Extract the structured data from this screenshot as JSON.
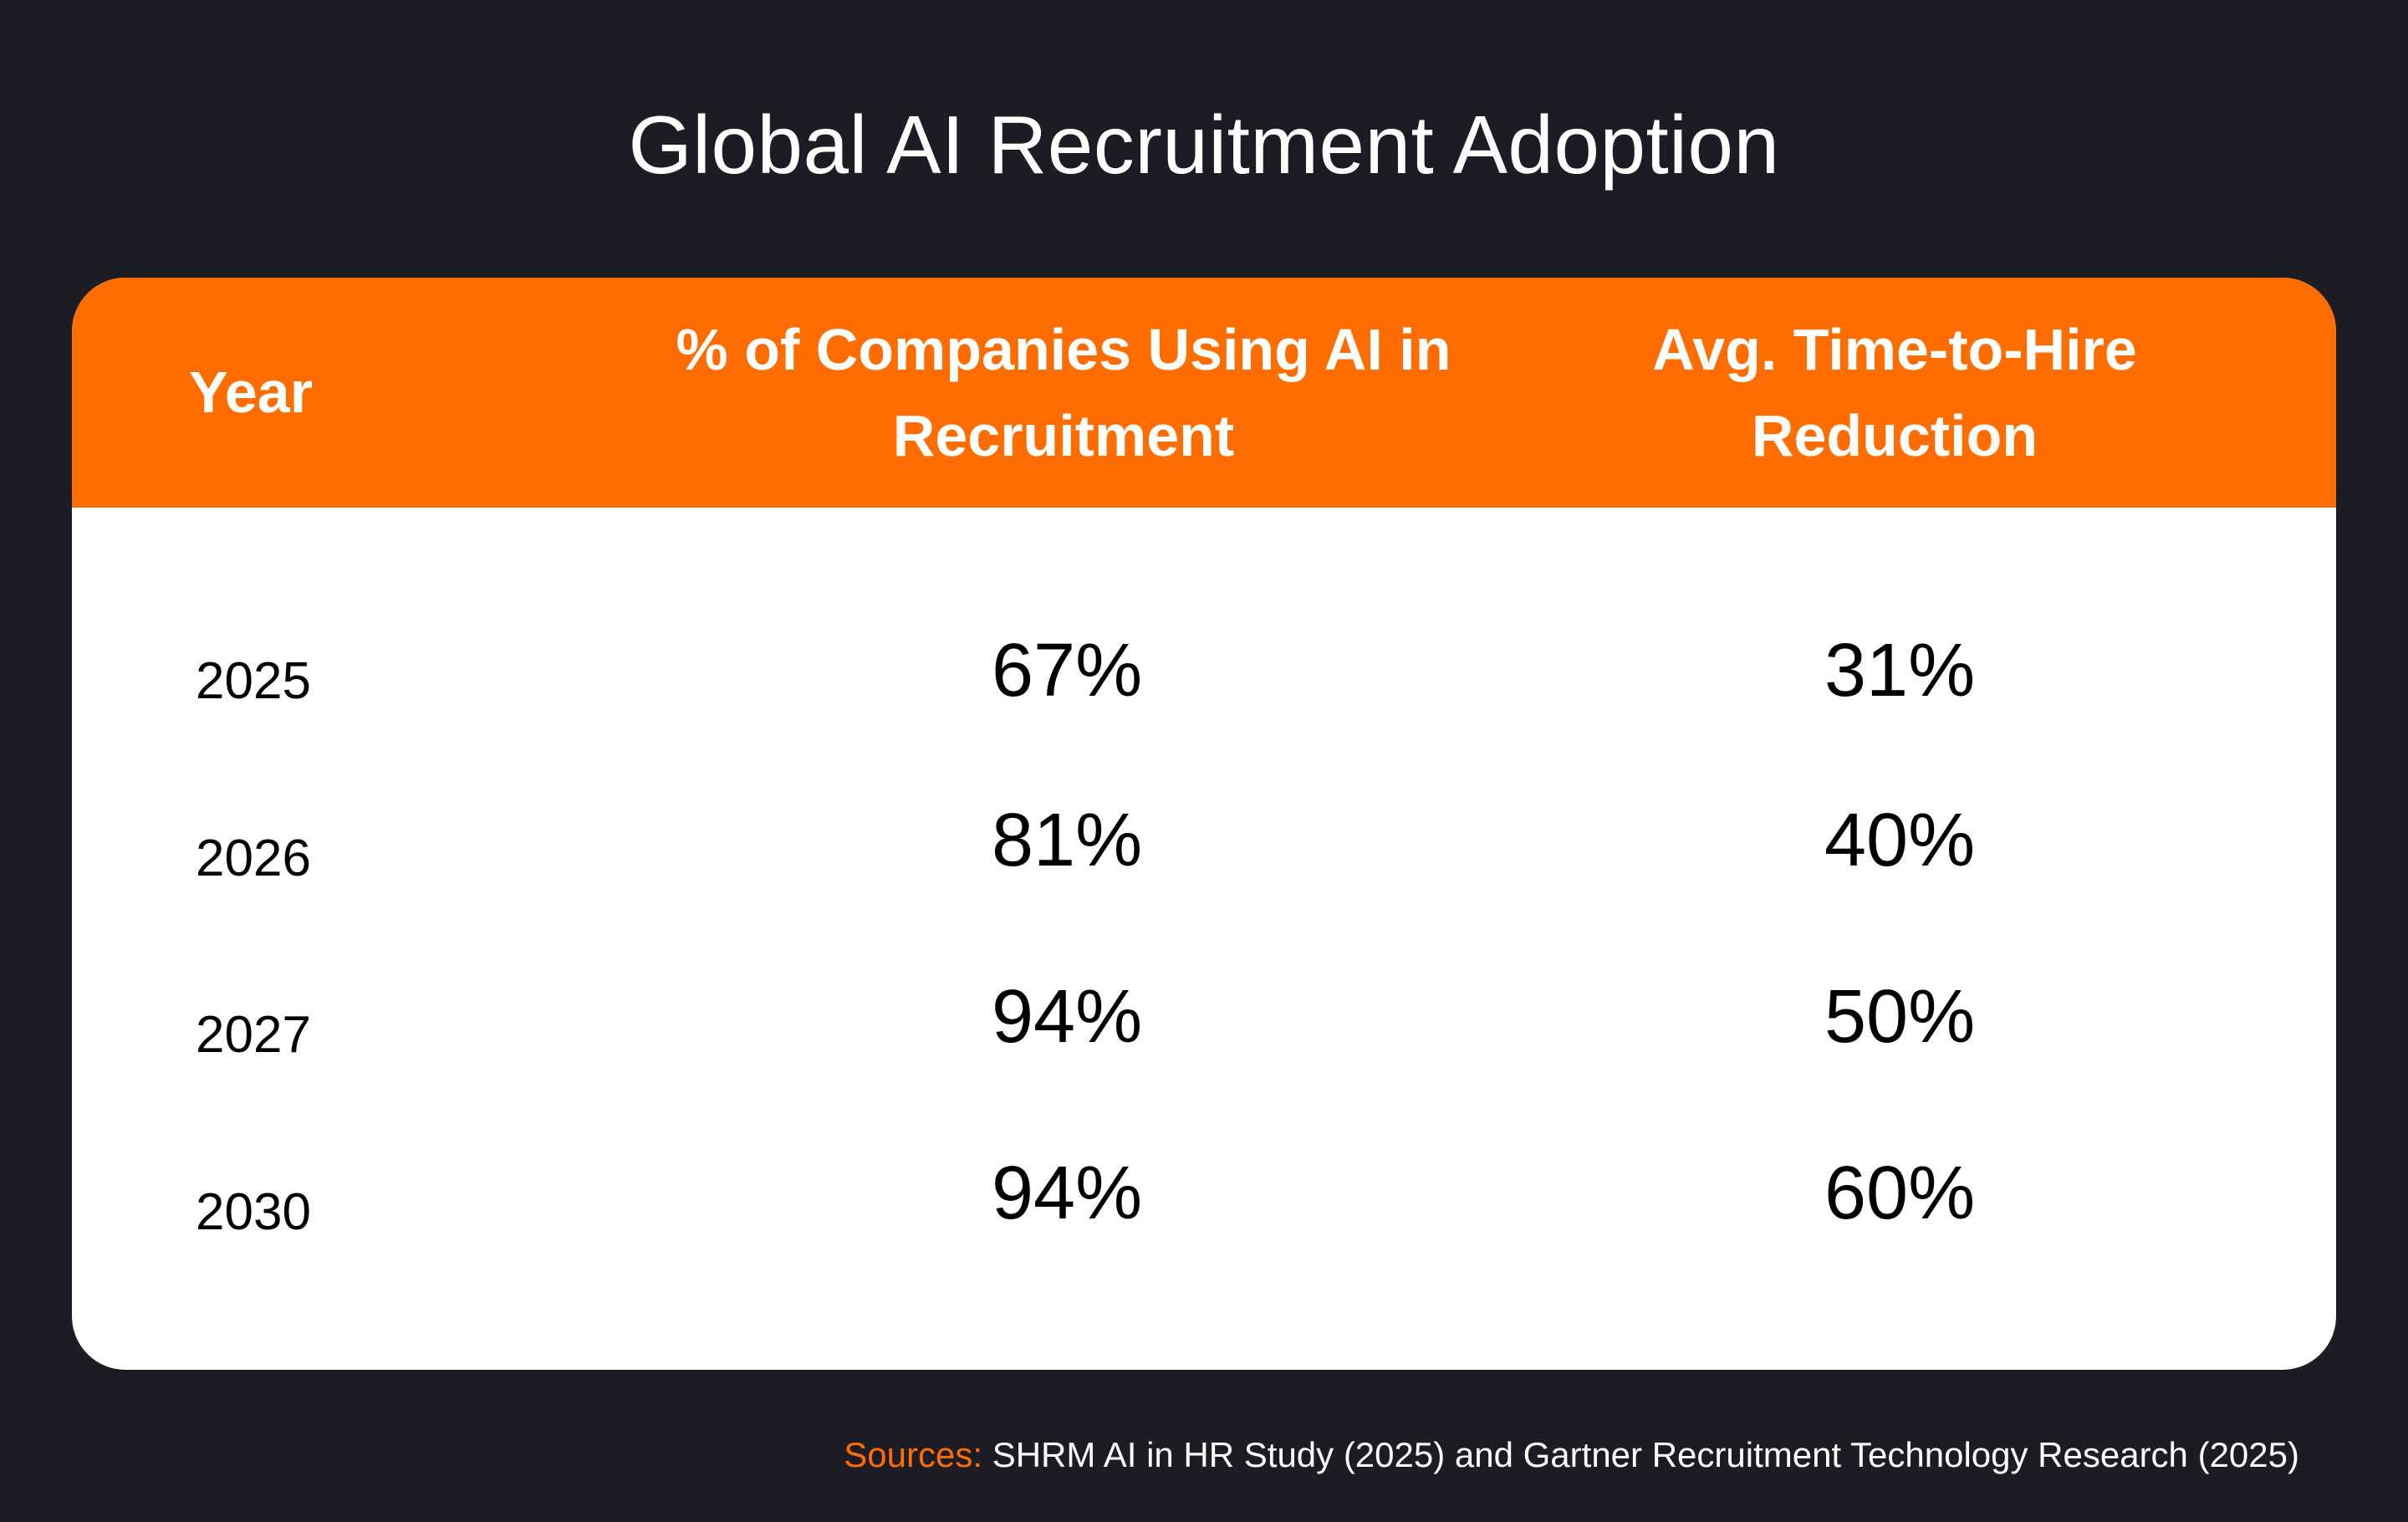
{
  "title": "Global AI Recruitment Adoption",
  "colors": {
    "background": "#1b1c24",
    "accent": "#ff6d00",
    "card": "#ffffff",
    "text_dark": "#000000",
    "text_light": "#ffffff"
  },
  "table": {
    "headers": {
      "year": "Year",
      "col1_line1": "% of Companies Using AI in",
      "col1_line2": "Recruitment",
      "col2_line1": "Avg. Time-to-Hire",
      "col2_line2": "Reduction"
    },
    "rows": [
      {
        "year": "2025",
        "adoption": "67%",
        "reduction": "31%"
      },
      {
        "year": "2026",
        "adoption": "81%",
        "reduction": "40%"
      },
      {
        "year": "2027",
        "adoption": "94%",
        "reduction": "50%"
      },
      {
        "year": "2030",
        "adoption": "94%",
        "reduction": "60%"
      }
    ]
  },
  "sources": {
    "label": "Sources:",
    "text": " SHRM AI in HR Study (2025) and Gartner Recruitment Technology Research (2025)"
  },
  "chart_data": {
    "type": "table",
    "title": "Global AI Recruitment Adoption",
    "columns": [
      "Year",
      "% of Companies Using AI in Recruitment",
      "Avg. Time-to-Hire Reduction"
    ],
    "categories": [
      "2025",
      "2026",
      "2027",
      "2030"
    ],
    "series": [
      {
        "name": "% of Companies Using AI in Recruitment",
        "values": [
          67,
          81,
          94,
          94
        ]
      },
      {
        "name": "Avg. Time-to-Hire Reduction",
        "values": [
          31,
          40,
          50,
          60
        ]
      }
    ]
  }
}
